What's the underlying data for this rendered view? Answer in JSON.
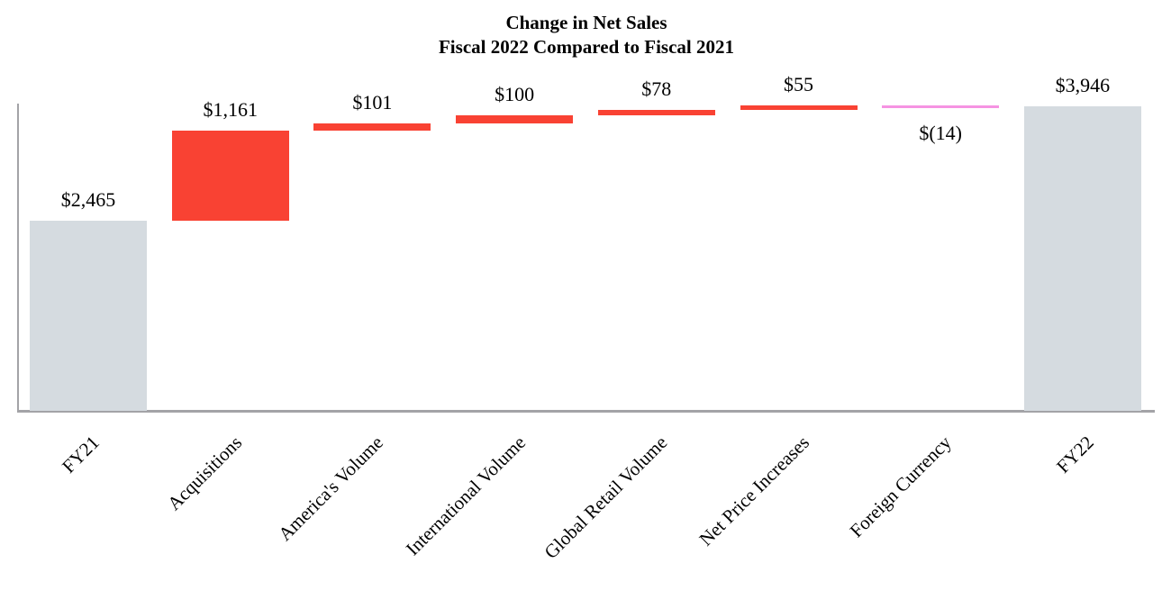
{
  "chart_data": {
    "type": "bar",
    "subtype": "waterfall",
    "title": "Change in Net Sales",
    "subtitle": "Fiscal 2022 Compared to Fiscal 2021",
    "categories": [
      "FY21",
      "Acquisitions",
      "America's Volume",
      "International Volume",
      "Global Retail Volume",
      "Net Price Increases",
      "Foreign Currency",
      "FY22"
    ],
    "values": [
      2465,
      1161,
      101,
      100,
      78,
      55,
      -14,
      3946
    ],
    "value_labels": [
      "$2,465",
      "$1,161",
      "$101",
      "$100",
      "$78",
      "$55",
      "$(14)",
      "$3,946"
    ],
    "bar_types": [
      "total",
      "increase",
      "increase",
      "increase",
      "increase",
      "increase",
      "decrease",
      "total"
    ],
    "colors": {
      "total": "#d5dbe0",
      "increase": "#f94233",
      "decrease": "#f593e2",
      "axis": "#a3a3a7"
    },
    "xlabel": "",
    "ylabel": "",
    "ylim": [
      0,
      3946
    ],
    "grid": "off",
    "legend": "none",
    "x_tick_rotation_deg": 45
  }
}
